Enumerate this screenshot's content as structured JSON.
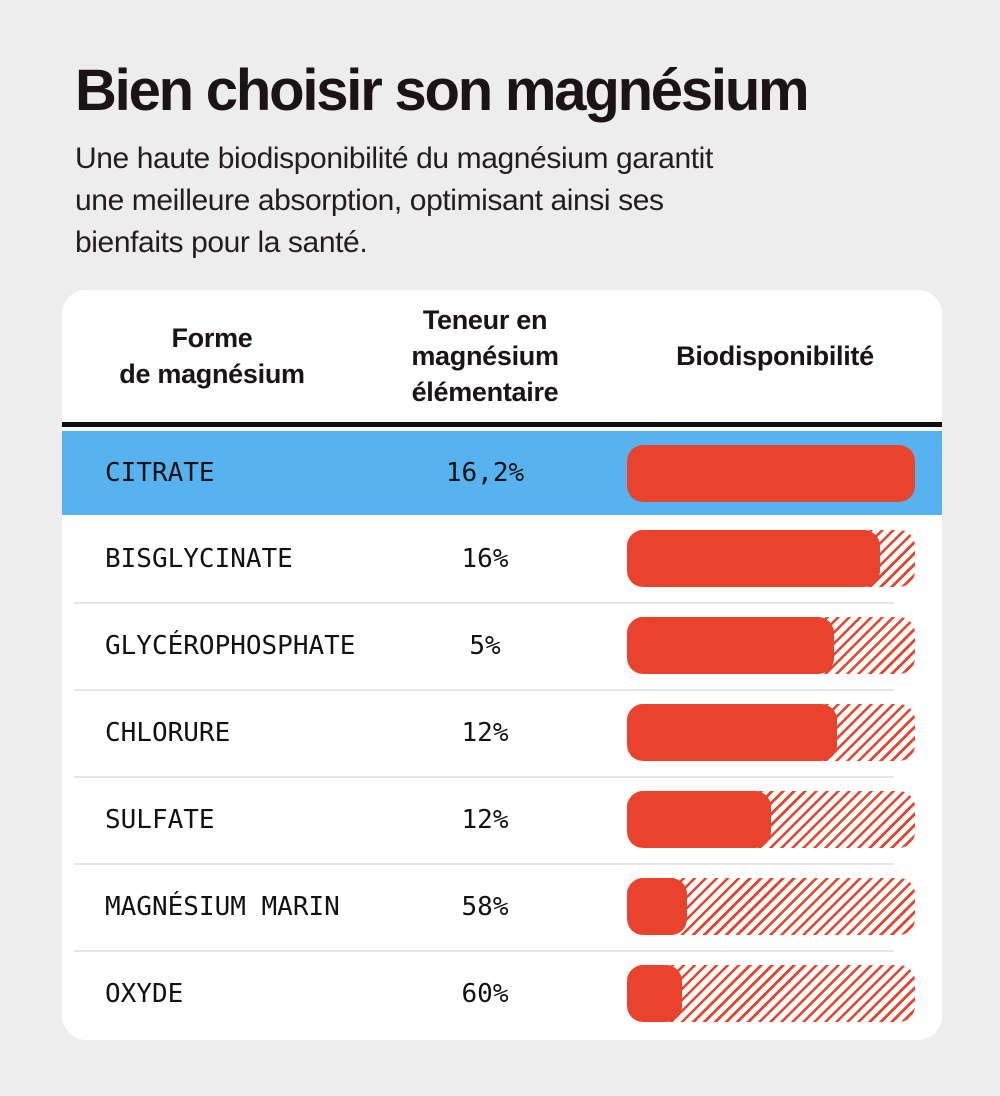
{
  "colors": {
    "background": "#EDEDED",
    "card": "#FFFFFF",
    "accent_red": "#E9432D",
    "highlight_blue": "#56B3F0",
    "text_dark": "#1B1317",
    "divider": "#E6E6E6",
    "header_rule": "#0E0E0E"
  },
  "header": {
    "title": "Bien choisir son magnésium",
    "subtitle_lines": [
      "Une haute biodisponibilité du magnésium garantit",
      "une meilleure absorption, optimisant ainsi ses",
      "bienfaits pour la santé."
    ]
  },
  "table": {
    "column_headers": [
      "Forme\nde magnésium",
      "Teneur en\nmagnésium\nélémentaire",
      "Biodisponibilité"
    ],
    "rows": [
      {
        "form": "CITRATE",
        "teneur": "16,2%",
        "bio_pct": 100,
        "highlighted": true
      },
      {
        "form": "BISGLYCINATE",
        "teneur": "16%",
        "bio_pct": 88,
        "highlighted": false
      },
      {
        "form": "GLYCÉROPHOSPHATE",
        "teneur": "5%",
        "bio_pct": 72,
        "highlighted": false
      },
      {
        "form": "CHLORURE",
        "teneur": "12%",
        "bio_pct": 73,
        "highlighted": false
      },
      {
        "form": "SULFATE",
        "teneur": "12%",
        "bio_pct": 50,
        "highlighted": false
      },
      {
        "form": "MAGNÉSIUM MARIN",
        "teneur": "58%",
        "bio_pct": 21,
        "highlighted": false
      },
      {
        "form": "OXYDE",
        "teneur": "60%",
        "bio_pct": 19,
        "highlighted": false
      }
    ]
  },
  "chart_data": {
    "type": "bar",
    "orientation": "horizontal",
    "title": "Bien choisir son magnésium",
    "subtitle": "Une haute biodisponibilité du magnésium garantit une meilleure absorption, optimisant ainsi ses bienfaits pour la santé.",
    "categories": [
      "CITRATE",
      "BISGLYCINATE",
      "GLYCÉROPHOSPHATE",
      "CHLORURE",
      "SULFATE",
      "MAGNÉSIUM MARIN",
      "OXYDE"
    ],
    "series": [
      {
        "name": "Teneur en magnésium élémentaire (%)",
        "values": [
          16.2,
          16,
          5,
          12,
          12,
          58,
          60
        ]
      },
      {
        "name": "Biodisponibilité (longueur de barre en % du maximum, estimée)",
        "values": [
          100,
          88,
          72,
          73,
          50,
          21,
          19
        ]
      }
    ],
    "xlim": [
      0,
      100
    ],
    "grid": false,
    "legend_position": "none",
    "highlighted_category": "CITRATE",
    "bar_style": "solid red fill, remainder to 100% shown as red diagonal hatch"
  }
}
